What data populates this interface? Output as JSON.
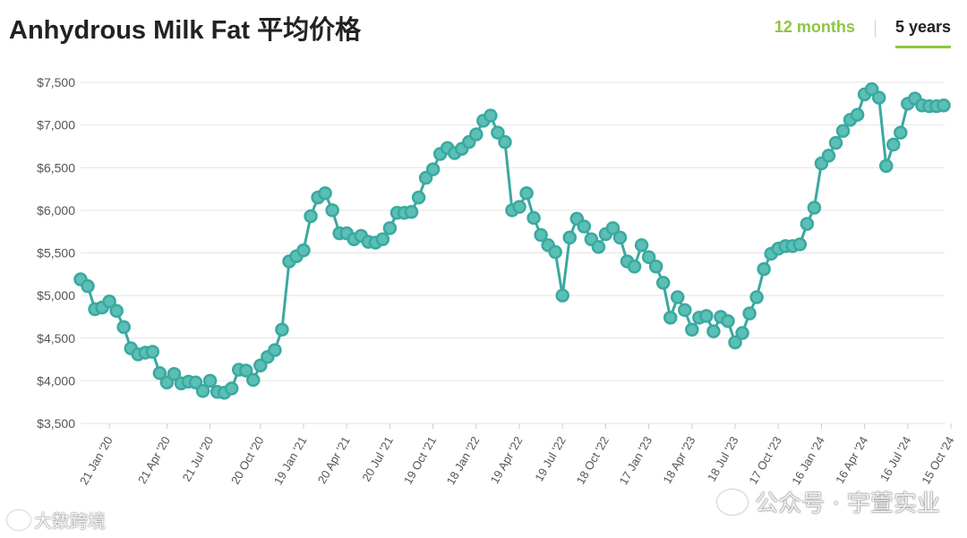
{
  "header": {
    "title": "Anhydrous Milk Fat 平均价格",
    "tabs": [
      {
        "label": "12 months",
        "active": false
      },
      {
        "label": "5 years",
        "active": true
      }
    ]
  },
  "watermark": {
    "left_text": "大数跨境",
    "right_text": "公众号 · 宇萱实业"
  },
  "colors": {
    "series": "#3aa9a0",
    "marker_fill": "#5bbfb5",
    "grid": "#e3e3e3",
    "accent": "#8cc63f"
  },
  "chart_data": {
    "type": "line",
    "title": "Anhydrous Milk Fat 平均价格",
    "xlabel": "",
    "ylabel": "",
    "ylim": [
      3500,
      7500
    ],
    "yticks": [
      3500,
      4000,
      4500,
      5000,
      5500,
      6000,
      6500,
      7000,
      7500
    ],
    "ytick_labels": [
      "$3,500",
      "$4,000",
      "$4,500",
      "$5,000",
      "$5,500",
      "$6,000",
      "$6,500",
      "$7,000",
      "$7,500"
    ],
    "xtick_labels": [
      "21 Jan '20",
      "21 Apr '20",
      "21 Jul '20",
      "20 Oct '20",
      "19 Jan '21",
      "20 Apr '21",
      "20 Jul '21",
      "19 Oct '21",
      "18 Jan '22",
      "19 Apr '22",
      "19 Jul '22",
      "18 Oct '22",
      "17 Jan '23",
      "18 Apr '23",
      "18 Jul '23",
      "17 Oct '23",
      "16 Jan '24",
      "16 Apr '24",
      "16 Jul '24",
      "15 Oct '24"
    ],
    "xtick_index": [
      4,
      12,
      18,
      25,
      31,
      37,
      43,
      49,
      55,
      61,
      67,
      73,
      79,
      85,
      91,
      97,
      103,
      109,
      115,
      121
    ],
    "grid": true,
    "legend": "none",
    "series": [
      {
        "values": [
          5190,
          5110,
          4840,
          4860,
          4930,
          4820,
          4630,
          4380,
          4310,
          4330,
          4340,
          4090,
          3980,
          4080,
          3970,
          3990,
          3980,
          3880,
          4000,
          3870,
          3860,
          3910,
          4130,
          4120,
          4010,
          4180,
          4280,
          4360,
          4600,
          5400,
          5460,
          5530,
          5930,
          6150,
          6200,
          6000,
          5730,
          5730,
          5660,
          5700,
          5630,
          5620,
          5660,
          5790,
          5970,
          5970,
          5980,
          6150,
          6380,
          6480,
          6660,
          6730,
          6670,
          6720,
          6800,
          6890,
          7050,
          7110,
          6910,
          6800,
          6000,
          6040,
          6200,
          5910,
          5710,
          5590,
          5510,
          5000,
          5680,
          5900,
          5810,
          5660,
          5570,
          5720,
          5790,
          5680,
          5400,
          5340,
          5590,
          5450,
          5340,
          5150,
          4740,
          4980,
          4830,
          4600,
          4740,
          4760,
          4580,
          4750,
          4700,
          4450,
          4560,
          4790,
          4980,
          5310,
          5490,
          5550,
          5580,
          5580,
          5600,
          5840,
          6030,
          6550,
          6640,
          6790,
          6930,
          7060,
          7120,
          7360,
          7420,
          7320,
          6520,
          6770,
          6910,
          7250,
          7310,
          7230,
          7220,
          7220,
          7230
        ]
      }
    ]
  }
}
